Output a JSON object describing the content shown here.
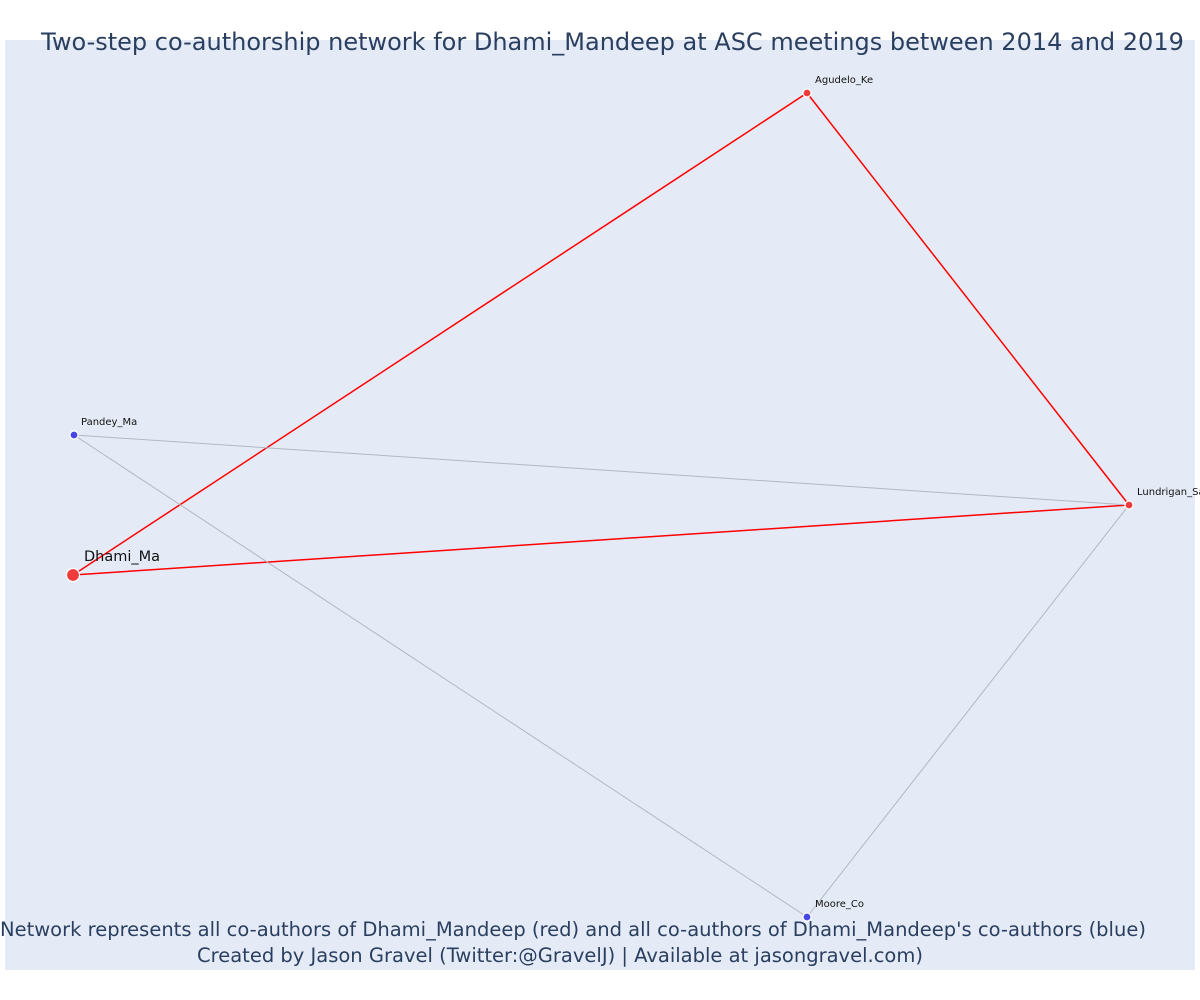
{
  "title": "Two-step co-authorship network for Dhami_Mandeep at ASC meetings between 2014 and 2019",
  "caption": {
    "line1": "Network represents all co-authors of Dhami_Mandeep (red) and all co-authors of Dhami_Mandeep's co-authors (blue)",
    "line2": "Created by Jason Gravel (Twitter:@GravelJ) | Available at jasongravel.com)"
  },
  "colors": {
    "red_node": "#ef3b3b",
    "blue_node": "#4646e6",
    "red_edge": "#ff0000",
    "grey_edge": "#b4b6c4",
    "background": "#e5ebf6",
    "text": "#2a3f5f"
  },
  "nodes": [
    {
      "id": "dhami",
      "label": "Dhami_Ma",
      "group": "ego"
    },
    {
      "id": "agudelo",
      "label": "Agudelo_Ke",
      "group": "coauthor"
    },
    {
      "id": "lundrigan",
      "label": "Lundrigan_Sa",
      "group": "coauthor"
    },
    {
      "id": "pandey",
      "label": "Pandey_Ma",
      "group": "second-step"
    },
    {
      "id": "moore",
      "label": "Moore_Co",
      "group": "second-step"
    }
  ],
  "edges": [
    {
      "source": "dhami",
      "target": "agudelo",
      "type": "direct"
    },
    {
      "source": "dhami",
      "target": "lundrigan",
      "type": "direct"
    },
    {
      "source": "agudelo",
      "target": "lundrigan",
      "type": "direct"
    },
    {
      "source": "pandey",
      "target": "lundrigan",
      "type": "indirect"
    },
    {
      "source": "pandey",
      "target": "moore",
      "type": "indirect"
    },
    {
      "source": "lundrigan",
      "target": "moore",
      "type": "indirect"
    }
  ]
}
